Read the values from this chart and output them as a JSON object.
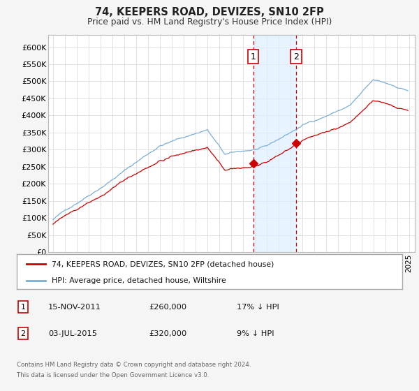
{
  "title": "74, KEEPERS ROAD, DEVIZES, SN10 2FP",
  "subtitle": "Price paid vs. HM Land Registry's House Price Index (HPI)",
  "ylabel_ticks": [
    "£0",
    "£50K",
    "£100K",
    "£150K",
    "£200K",
    "£250K",
    "£300K",
    "£350K",
    "£400K",
    "£450K",
    "£500K",
    "£550K",
    "£600K"
  ],
  "ytick_values": [
    0,
    50000,
    100000,
    150000,
    200000,
    250000,
    300000,
    350000,
    400000,
    450000,
    500000,
    550000,
    600000
  ],
  "purchase1_year": 2011.875,
  "purchase1_price": 260000,
  "purchase2_year": 2015.5,
  "purchase2_price": 320000,
  "legend_property": "74, KEEPERS ROAD, DEVIZES, SN10 2FP (detached house)",
  "legend_hpi": "HPI: Average price, detached house, Wiltshire",
  "hpi_color": "#7bafd4",
  "property_color": "#cc0000",
  "marker_box_color": "#cc0000",
  "shade_color": "#ddeeff",
  "dashed_color": "#cc0000",
  "footnote1": "Contains HM Land Registry data © Crown copyright and database right 2024.",
  "footnote2": "This data is licensed under the Open Government Licence v3.0.",
  "background_color": "#ffffff",
  "grid_color": "#dddddd",
  "fig_background": "#f5f5f5"
}
